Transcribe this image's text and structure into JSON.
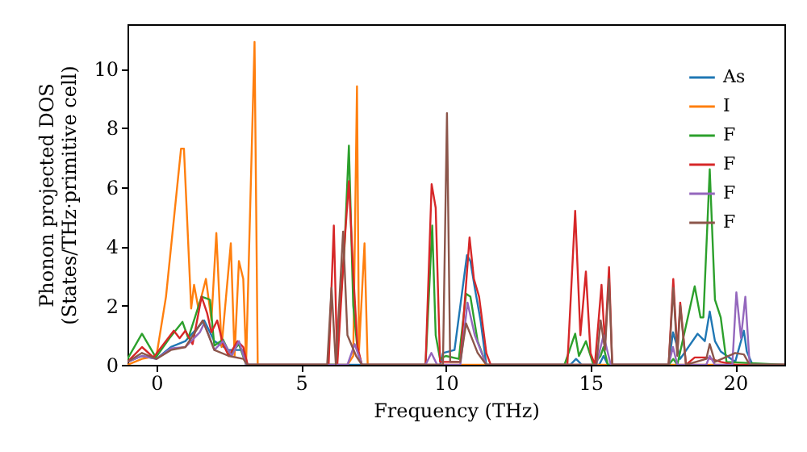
{
  "chart_data": {
    "type": "line",
    "xlabel": "Frequency (THz)",
    "ylabel": "Phonon projected DOS\n(States/THz·primitive cell)",
    "xlim": [
      -1,
      21.7
    ],
    "ylim": [
      0,
      11.5
    ],
    "xticks": [
      0,
      5,
      10,
      15,
      20
    ],
    "yticks": [
      0,
      2,
      4,
      6,
      8,
      10
    ],
    "grid": false,
    "legend": "top right",
    "marker": "none",
    "line_style": "solid",
    "series": [
      {
        "name": "As",
        "color": "#1f77b4",
        "x": [
          -1,
          -0.5,
          0,
          0.5,
          1,
          1.65,
          2,
          2.5,
          3,
          3.15,
          6,
          9.8,
          9.9,
          10.3,
          10.73,
          10.85,
          11,
          11.2,
          11.4,
          14.3,
          14.5,
          14.7,
          15.3,
          15.45,
          15.6,
          17.7,
          17.85,
          18,
          18.1,
          18.7,
          18.95,
          19.12,
          19.3,
          19.5,
          20,
          20.3,
          20.4,
          20.6,
          21.7
        ],
        "values": [
          0.1,
          0.3,
          0.2,
          0.6,
          0.8,
          1.5,
          0.8,
          0.5,
          0.5,
          0,
          0,
          0,
          0.4,
          0.5,
          3.7,
          3.5,
          2.6,
          1.5,
          0,
          0,
          0.2,
          0,
          0,
          0.3,
          0,
          0,
          1.1,
          0.6,
          0.2,
          1.05,
          0.8,
          1.8,
          0.8,
          0.45,
          0.1,
          1.15,
          0.45,
          0,
          0
        ]
      },
      {
        "name": "I",
        "color": "#ff7f0e",
        "x": [
          -1,
          -0.5,
          0,
          0.33,
          0.85,
          0.95,
          1.2,
          1.3,
          1.45,
          1.71,
          1.9,
          2.07,
          2.25,
          2.57,
          2.7,
          2.85,
          3,
          3.1,
          3.39,
          3.5,
          6.6,
          6.8,
          6.93,
          7,
          7.19,
          7.3,
          21.7
        ],
        "values": [
          0,
          0.2,
          0.3,
          2.3,
          7.3,
          7.3,
          1.9,
          2.7,
          1.9,
          2.9,
          1.5,
          4.45,
          0.6,
          4.1,
          0.3,
          3.5,
          2.9,
          0.1,
          10.9,
          0,
          0,
          0.3,
          9.4,
          0.5,
          4.1,
          0,
          0
        ]
      },
      {
        "name": "F",
        "color": "#2ca02c",
        "x": [
          -1,
          -0.5,
          -0.02,
          0.45,
          0.9,
          1.1,
          1.56,
          1.85,
          2,
          2.3,
          2.55,
          2.85,
          3.1,
          6.2,
          6.5,
          6.65,
          6.8,
          6.95,
          7.1,
          9.3,
          9.53,
          9.65,
          9.8,
          10,
          10.45,
          10.7,
          10.85,
          11.1,
          11.4,
          14.1,
          14.47,
          14.6,
          14.84,
          15.1,
          15.35,
          15.45,
          15.6,
          17.7,
          17.86,
          18,
          18.6,
          18.8,
          18.9,
          19.12,
          19.3,
          19.5,
          19.7,
          21.7
        ],
        "values": [
          0.2,
          1.05,
          0.25,
          0.9,
          1.45,
          0.9,
          2.3,
          2.2,
          0.65,
          0.85,
          0.35,
          0.7,
          0,
          0,
          4,
          7.4,
          2,
          0.5,
          0,
          0,
          4.7,
          1,
          0.2,
          0.3,
          0.2,
          2.4,
          2.3,
          0.8,
          0,
          0,
          1.05,
          0.3,
          0.8,
          0,
          0.3,
          0.6,
          0,
          0,
          0.2,
          0,
          2.65,
          1.6,
          1.6,
          6.6,
          2.2,
          1.6,
          0.1,
          0
        ]
      },
      {
        "name": "F",
        "color": "#d62728",
        "x": [
          -1,
          -0.5,
          -0.1,
          0.6,
          0.8,
          1,
          1.25,
          1.56,
          1.75,
          1.9,
          2.1,
          2.3,
          2.5,
          2.8,
          3,
          3.15,
          5.95,
          6.13,
          6.25,
          6.5,
          6.65,
          6.8,
          6.95,
          7.1,
          9.3,
          9.51,
          9.65,
          9.8,
          10.5,
          10.82,
          10.97,
          11.15,
          11.4,
          11.55,
          14.2,
          14.47,
          14.65,
          14.84,
          15,
          15.15,
          15.38,
          15.5,
          15.64,
          15.75,
          17.7,
          17.86,
          18,
          18.1,
          18.3,
          18.6,
          19,
          19.5,
          20,
          21.7
        ],
        "values": [
          0.1,
          0.6,
          0.25,
          1.15,
          0.9,
          1.15,
          0.7,
          2.3,
          1.75,
          1.1,
          1.5,
          0.7,
          0.3,
          0.8,
          0.6,
          0,
          0,
          4.7,
          0,
          4.1,
          6.2,
          3.1,
          0.6,
          0,
          0,
          6.1,
          5.3,
          0.1,
          0.1,
          4.3,
          2.9,
          2.3,
          0.4,
          0,
          0,
          5.2,
          1,
          3.15,
          0.4,
          0,
          2.7,
          0.7,
          3.3,
          0,
          0,
          2.9,
          0.4,
          2.1,
          0,
          0.25,
          0.25,
          0.1,
          0,
          0
        ]
      },
      {
        "name": "F",
        "color": "#9467bd",
        "x": [
          -1,
          -0.5,
          0,
          0.5,
          1,
          1.5,
          1.65,
          2,
          2.3,
          2.6,
          2.85,
          3.1,
          6.6,
          6.85,
          7.1,
          9.3,
          9.5,
          9.7,
          10.5,
          10.75,
          11,
          11.4,
          15.2,
          15.45,
          15.7,
          17.7,
          17.85,
          18,
          19,
          19.12,
          19.3,
          19.9,
          20.04,
          20.2,
          20.35,
          20.5,
          21.7
        ],
        "values": [
          0.1,
          0.3,
          0.2,
          0.55,
          0.6,
          1.1,
          1.4,
          0.5,
          0.8,
          0.3,
          0.8,
          0,
          0,
          0.7,
          0,
          0,
          0.4,
          0,
          0,
          2.1,
          1,
          0,
          0,
          1,
          0,
          0,
          0.6,
          0,
          0,
          0.3,
          0,
          0,
          2.45,
          0.9,
          2.3,
          0,
          0
        ]
      },
      {
        "name": "F",
        "color": "#8c564b",
        "x": [
          -1,
          -0.5,
          0,
          0.5,
          1,
          1.6,
          2,
          2.5,
          3,
          3.15,
          5.9,
          6.05,
          6.2,
          6.45,
          6.6,
          6.9,
          7.1,
          9.9,
          10.04,
          10.15,
          10.5,
          10.7,
          11.1,
          11.4,
          15.2,
          15.35,
          15.5,
          15.64,
          15.75,
          17.7,
          17.86,
          18,
          18.1,
          18.3,
          19,
          19.12,
          19.3,
          20,
          20.3,
          20.5,
          21.7
        ],
        "values": [
          0.1,
          0.4,
          0.2,
          0.5,
          0.6,
          1.5,
          0.5,
          0.3,
          0.2,
          0,
          0,
          2.6,
          0,
          4.5,
          1,
          0.3,
          0,
          0,
          8.5,
          0.1,
          0.1,
          1.4,
          0.4,
          0,
          0,
          1.5,
          0.5,
          2.9,
          0,
          0,
          2.6,
          0.3,
          2,
          0,
          0.2,
          0.7,
          0.1,
          0.4,
          0.35,
          0,
          0
        ]
      }
    ]
  }
}
